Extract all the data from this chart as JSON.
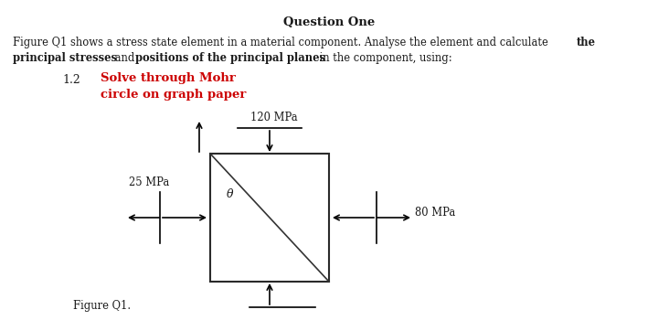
{
  "title": "Question One",
  "line1_normal": "Figure Q1 shows a stress state element in a material component. Analyse the element and calculate ",
  "line1_bold": "the",
  "line2_bold1": "principal stresses",
  "line2_normal": " and ",
  "line2_bold2": "positions of the principal planes",
  "line2_end": " in the component, using:",
  "item_number": "1.2",
  "item_text_red_line1": "Solve through Mohr",
  "item_text_red_line2": "circle on graph paper",
  "stress_top": "120 MPa",
  "stress_left": "25 MPa",
  "stress_right": "80 MPa",
  "figure_label": "Figure Q1.",
  "theta_label": "θ",
  "bg_color": "#ffffff",
  "text_color": "#1a1a1a",
  "red_color": "#cc0000",
  "box_color": "#2a2a2a",
  "font_family": "DejaVu Serif"
}
